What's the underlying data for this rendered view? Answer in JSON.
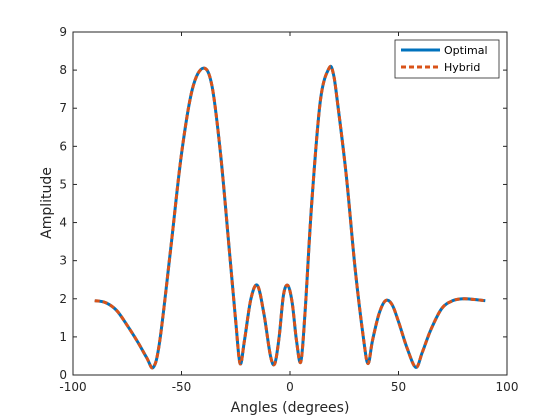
{
  "chart_data": {
    "type": "line",
    "title": "",
    "xlabel": "Angles (degrees)",
    "ylabel": "Amplitude",
    "xlim": [
      -100,
      100
    ],
    "ylim": [
      0,
      9
    ],
    "xticks": [
      -100,
      -50,
      0,
      50,
      100
    ],
    "yticks": [
      0,
      1,
      2,
      3,
      4,
      5,
      6,
      7,
      8,
      9
    ],
    "grid": false,
    "legend_position": "top-right",
    "series": [
      {
        "name": "Optimal",
        "color": "#0072BD",
        "style": "solid",
        "x": [
          -90,
          -85,
          -80,
          -75,
          -70,
          -66,
          -63,
          -60,
          -55,
          -50,
          -45,
          -40,
          -36,
          -32,
          -28,
          -25,
          -23,
          -21,
          -18,
          -15,
          -12,
          -9,
          -7,
          -5,
          -3,
          -1,
          1,
          3,
          5,
          7,
          10,
          14,
          18,
          20,
          22,
          26,
          30,
          34,
          36,
          38,
          41,
          44,
          47,
          50,
          54,
          58,
          61,
          65,
          70,
          75,
          80,
          85,
          90
        ],
        "y": [
          1.95,
          1.9,
          1.7,
          1.3,
          0.85,
          0.45,
          0.2,
          0.9,
          3.3,
          5.8,
          7.5,
          8.05,
          7.6,
          5.8,
          3.3,
          1.4,
          0.3,
          0.9,
          2.0,
          2.35,
          1.6,
          0.5,
          0.3,
          1.0,
          2.1,
          2.35,
          1.9,
          0.9,
          0.35,
          1.7,
          4.5,
          7.2,
          8.05,
          7.9,
          7.1,
          5.2,
          2.8,
          0.9,
          0.3,
          0.9,
          1.6,
          1.95,
          1.85,
          1.4,
          0.7,
          0.2,
          0.6,
          1.2,
          1.75,
          1.95,
          2.0,
          1.98,
          1.95
        ]
      },
      {
        "name": "Hybrid",
        "color": "#D95319",
        "style": "dashed",
        "x": [
          -90,
          -85,
          -80,
          -75,
          -70,
          -66,
          -63,
          -60,
          -55,
          -50,
          -45,
          -40,
          -36,
          -32,
          -28,
          -25,
          -23,
          -21,
          -18,
          -15,
          -12,
          -9,
          -7,
          -5,
          -3,
          -1,
          1,
          3,
          5,
          7,
          10,
          14,
          18,
          20,
          22,
          26,
          30,
          34,
          36,
          38,
          41,
          44,
          47,
          50,
          54,
          58,
          61,
          65,
          70,
          75,
          80,
          85,
          90
        ],
        "y": [
          1.95,
          1.9,
          1.7,
          1.3,
          0.85,
          0.45,
          0.2,
          0.9,
          3.3,
          5.8,
          7.5,
          8.05,
          7.6,
          5.8,
          3.3,
          1.4,
          0.3,
          0.9,
          2.0,
          2.35,
          1.6,
          0.5,
          0.3,
          1.0,
          2.1,
          2.35,
          1.9,
          0.9,
          0.35,
          1.7,
          4.5,
          7.2,
          8.05,
          7.9,
          7.1,
          5.2,
          2.8,
          0.9,
          0.3,
          0.9,
          1.6,
          1.95,
          1.85,
          1.4,
          0.7,
          0.2,
          0.6,
          1.2,
          1.75,
          1.95,
          2.0,
          1.98,
          1.95
        ]
      }
    ]
  }
}
